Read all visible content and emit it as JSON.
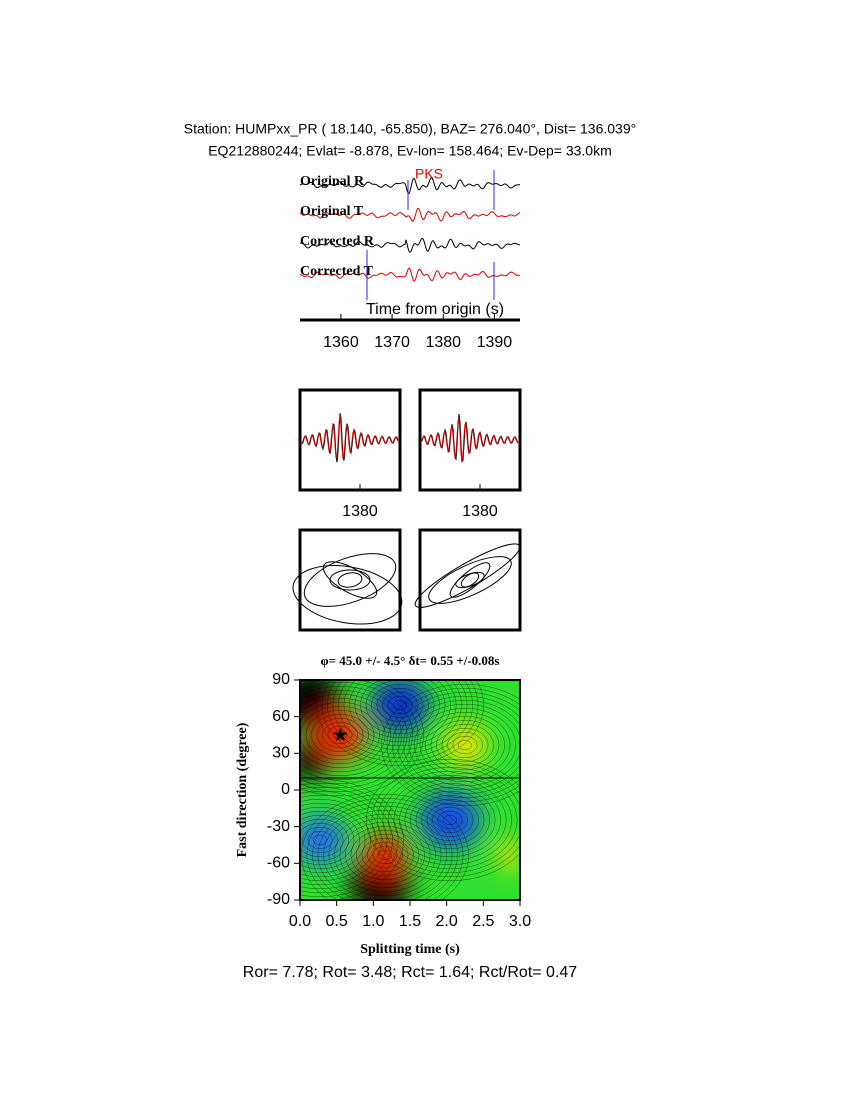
{
  "header": {
    "line1": "Station: HUMPxx_PR (  18.140,  -65.850), BAZ=  276.040°, Dist=  136.039°",
    "line2": "EQ212880244; Evlat=  -8.878, Ev-lon= 158.464; Ev-Dep= 33.0km"
  },
  "waveforms": {
    "traces": [
      "Original R",
      "Original T",
      "Corrected R",
      "Corrected T"
    ],
    "phase": "PKS",
    "xlabel": "Time from origin (s)",
    "xlim": [
      1352,
      1395
    ],
    "xticks": [
      1360,
      1370,
      1380,
      1390
    ]
  },
  "particle_panels": [
    {
      "xlim": [
        1368,
        1388
      ],
      "xticks": [
        1380
      ]
    },
    {
      "xlim": [
        1368,
        1388
      ],
      "xticks": [
        1380
      ]
    }
  ],
  "grid_search": {
    "title": "φ= 45.0 +/- 4.5° δt= 0.55 +/-0.08s",
    "xlabel": "Splitting time (s)",
    "ylabel": "Fast direction (degree)",
    "xlim": [
      0,
      3
    ],
    "ylim": [
      -90,
      90
    ],
    "xticks": [
      {
        "value": 0,
        "label": "0.0"
      },
      {
        "value": 0.5,
        "label": "0.5"
      },
      {
        "value": 1,
        "label": "1.0"
      },
      {
        "value": 1.5,
        "label": "1.5"
      },
      {
        "value": 2,
        "label": "2.0"
      },
      {
        "value": 2.5,
        "label": "2.5"
      },
      {
        "value": 3,
        "label": "3.0"
      }
    ],
    "yticks": [
      -90,
      -60,
      -30,
      0,
      30,
      60,
      90
    ],
    "best": {
      "dt": 0.55,
      "phi": 45
    }
  },
  "footer": "Ror= 7.78; Rot= 3.48; Rct= 1.64; Rct/Rot= 0.47"
}
